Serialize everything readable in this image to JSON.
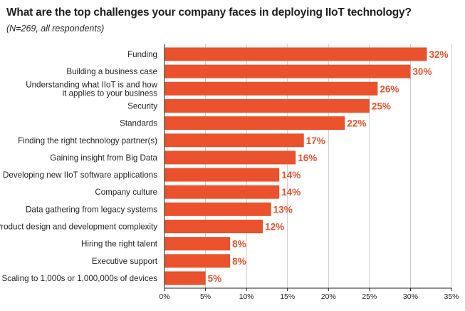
{
  "chart_data": {
    "type": "bar",
    "orientation": "horizontal",
    "title": "What are the top challenges your company faces in deploying IIoT technology?",
    "subtitle": "(N=269, all respondents)",
    "categories": [
      "Funding",
      "Building a business case",
      [
        "Understanding what IIoT is and how",
        "it applies to your business"
      ],
      "Security",
      "Standards",
      "Finding the right technology partner(s)",
      "Gaining insight from Big Data",
      "Developing new IIoT software applications",
      "Company culture",
      "Data gathering from legacy systems",
      "Product design and development complexity",
      "Hiring the right talent",
      "Executive support",
      "Scaling to 1,000s or 1,000,000s of devices"
    ],
    "values": [
      32,
      30,
      26,
      25,
      22,
      17,
      16,
      14,
      14,
      13,
      12,
      8,
      8,
      5
    ],
    "value_labels": [
      "32%",
      "30%",
      "26%",
      "25%",
      "22%",
      "17%",
      "16%",
      "14%",
      "14%",
      "13%",
      "12%",
      "8%",
      "8%",
      "5%"
    ],
    "xlim": [
      0,
      35
    ],
    "xticks": [
      0,
      5,
      10,
      15,
      20,
      25,
      30,
      35
    ],
    "xtick_labels": [
      "0%",
      "5%",
      "10%",
      "15%",
      "20%",
      "25%",
      "30%",
      "35%"
    ],
    "xlabel": "",
    "ylabel": "",
    "grid": true,
    "colors": {
      "bar": "#e9522c",
      "label": "#e9522c",
      "grid": "#bcbec0",
      "axis": "#231f20"
    }
  }
}
